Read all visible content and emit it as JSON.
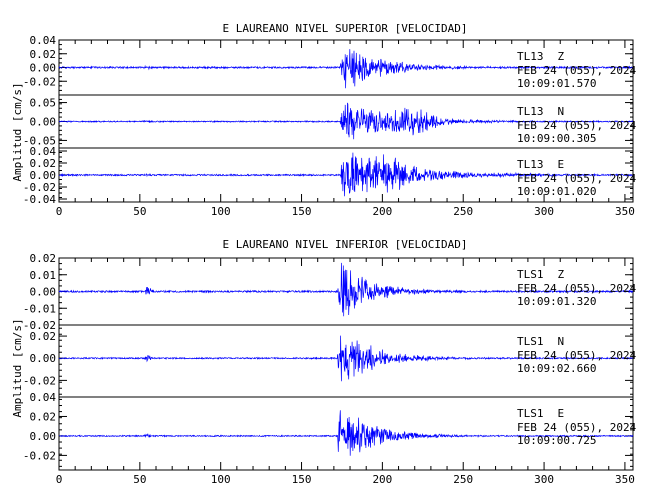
{
  "chart_data": [
    {
      "type": "line",
      "title": "E LAUREANO NIVEL SUPERIOR [VELOCIDAD]",
      "ylabel": "Amplitud [cm/s]",
      "xlim": [
        0,
        355
      ],
      "xticks": [
        "0",
        "50",
        "100",
        "150",
        "200",
        "250",
        "300",
        "350"
      ],
      "line_color": "#0000ff",
      "series": [
        {
          "name": "Z",
          "station": "TL13",
          "component": "Z",
          "date_label": "FEB 24 (055), 2024",
          "time_label": "10:09:01.570",
          "ylim": [
            -0.04,
            0.04
          ],
          "yticks": [
            "0.04",
            "0.02",
            "0.00",
            "-0.02"
          ],
          "onset": 174,
          "peak": 0.035,
          "noise": 0.0012,
          "tau": 22,
          "wavelets": [
            [
              55,
              0.003,
              2
            ]
          ],
          "bumps": [],
          "seed": 11
        },
        {
          "name": "N",
          "station": "TL13",
          "component": "N",
          "date_label": "FEB 24 (055), 2024",
          "time_label": "10:09:00.305",
          "ylim": [
            -0.07,
            0.07
          ],
          "yticks": [
            "0.05",
            "0.00",
            "-0.05"
          ],
          "onset": 174,
          "peak": 0.055,
          "noise": 0.0015,
          "tau": 30,
          "wavelets": [
            [
              55,
              0.003,
              2
            ]
          ],
          "bumps": [
            [
              220,
              0.4,
              12
            ]
          ],
          "seed": 23
        },
        {
          "name": "E",
          "station": "TL13",
          "component": "E",
          "date_label": "FEB 24 (055), 2024",
          "time_label": "10:09:01.020",
          "ylim": [
            -0.045,
            0.045
          ],
          "yticks": [
            "0.04",
            "0.02",
            "0.00",
            "-0.02",
            "-0.04"
          ],
          "onset": 174,
          "peak": 0.04,
          "noise": 0.0012,
          "tau": 35,
          "wavelets": [
            [
              55,
              0.002,
              2
            ]
          ],
          "bumps": [
            [
              205,
              0.35,
              10
            ]
          ],
          "seed": 37
        }
      ]
    },
    {
      "type": "line",
      "title": "E LAUREANO NIVEL INFERIOR [VELOCIDAD]",
      "ylabel": "Amplitud [cm/s]",
      "xlim": [
        0,
        355
      ],
      "xticks": [
        "0",
        "50",
        "100",
        "150",
        "200",
        "250",
        "300",
        "350"
      ],
      "line_color": "#0000ff",
      "series": [
        {
          "name": "Z",
          "station": "TLS1",
          "component": "Z",
          "date_label": "FEB 24 (055), 2024",
          "time_label": "10:09:01.320",
          "ylim": [
            -0.02,
            0.02
          ],
          "yticks": [
            "0.02",
            "0.01",
            "0.00",
            "-0.01",
            "-0.02"
          ],
          "onset": 172,
          "peak": 0.019,
          "noise": 0.0005,
          "tau": 18,
          "wavelets": [
            [
              55,
              0.003,
              2.5
            ]
          ],
          "bumps": [],
          "seed": 41
        },
        {
          "name": "N",
          "station": "TLS1",
          "component": "N",
          "date_label": "FEB 24 (055), 2024",
          "time_label": "10:09:02.660",
          "ylim": [
            -0.035,
            0.03
          ],
          "yticks": [
            "0.02",
            "0.00",
            "-0.02"
          ],
          "onset": 172,
          "peak": 0.028,
          "noise": 0.0006,
          "tau": 20,
          "wavelets": [
            [
              55,
              0.0025,
              2
            ]
          ],
          "bumps": [],
          "seed": 53
        },
        {
          "name": "E",
          "station": "TLS1",
          "component": "E",
          "date_label": "FEB 24 (055), 2024",
          "time_label": "10:09:00.725",
          "ylim": [
            -0.035,
            0.04
          ],
          "yticks": [
            "0.04",
            "0.02",
            "0.00",
            "-0.02"
          ],
          "onset": 172,
          "peak": 0.032,
          "noise": 0.0006,
          "tau": 20,
          "wavelets": [
            [
              55,
              0.002,
              2
            ]
          ],
          "bumps": [],
          "seed": 67
        }
      ]
    }
  ]
}
